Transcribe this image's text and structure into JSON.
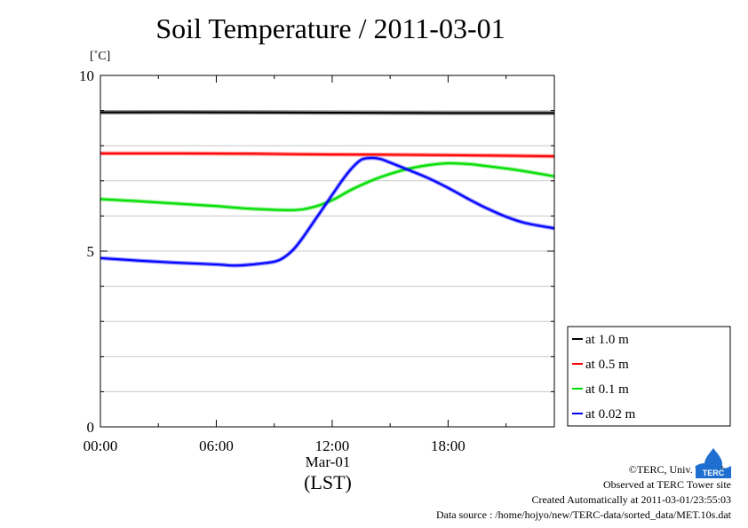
{
  "page": {
    "title": "Soil Temperature / 2011-03-01",
    "credits": {
      "copyright": "©TERC, Univ. Tsukuba",
      "site": "Observed at TERC Tower site",
      "created": "Created Automatically at 2011-03-01/23:55:03",
      "source": "Data source : /home/hojyo/new/TERC-data/sorted_data/MET.10s.dat"
    },
    "logo_text": "TERC"
  },
  "chart_data": {
    "type": "line",
    "title": "Soil Temperature / 2011-03-01",
    "ylabel": "[˚C]",
    "xlabel": "(LST)",
    "x_category": "Mar-01",
    "xlim": [
      0,
      23.5
    ],
    "ylim": [
      0,
      10
    ],
    "x_ticks": [
      0,
      6,
      12,
      18
    ],
    "x_tick_labels": [
      "00:00",
      "06:00",
      "12:00",
      "18:00"
    ],
    "y_ticks": [
      0,
      5,
      10
    ],
    "y_tick_labels": [
      "0",
      "5",
      "10"
    ],
    "grid": true,
    "legend_position": "lower-right outside",
    "series": [
      {
        "name": "at 1.0 m",
        "color": "#000000",
        "x": [
          0,
          6,
          12,
          18,
          23.5
        ],
        "y": [
          8.95,
          8.95,
          8.94,
          8.93,
          8.93
        ]
      },
      {
        "name": "at 0.5 m",
        "color": "#ff0000",
        "x": [
          0,
          4,
          8,
          12,
          16,
          20,
          23.5
        ],
        "y": [
          7.78,
          7.78,
          7.77,
          7.75,
          7.74,
          7.72,
          7.7
        ]
      },
      {
        "name": "at 0.1 m",
        "color": "#00dd00",
        "x": [
          0,
          2,
          4,
          6,
          8,
          10,
          11,
          12,
          13,
          14,
          15,
          16,
          17,
          18,
          19,
          20,
          21,
          22,
          23.5
        ],
        "y": [
          6.48,
          6.42,
          6.35,
          6.28,
          6.2,
          6.17,
          6.25,
          6.45,
          6.75,
          7.0,
          7.2,
          7.35,
          7.45,
          7.5,
          7.48,
          7.42,
          7.35,
          7.27,
          7.13
        ]
      },
      {
        "name": "at 0.02 m",
        "color": "#0000ff",
        "x": [
          0,
          2,
          4,
          6,
          7,
          8,
          9,
          9.5,
          10,
          10.5,
          11,
          11.5,
          12,
          12.5,
          13,
          13.5,
          14,
          14.5,
          15,
          16,
          17,
          18,
          19,
          20,
          21,
          22,
          23.5
        ],
        "y": [
          4.8,
          4.73,
          4.67,
          4.62,
          4.59,
          4.63,
          4.7,
          4.82,
          5.05,
          5.4,
          5.8,
          6.2,
          6.6,
          7.0,
          7.35,
          7.6,
          7.65,
          7.62,
          7.52,
          7.3,
          7.07,
          6.8,
          6.5,
          6.22,
          5.98,
          5.8,
          5.65
        ]
      }
    ]
  }
}
